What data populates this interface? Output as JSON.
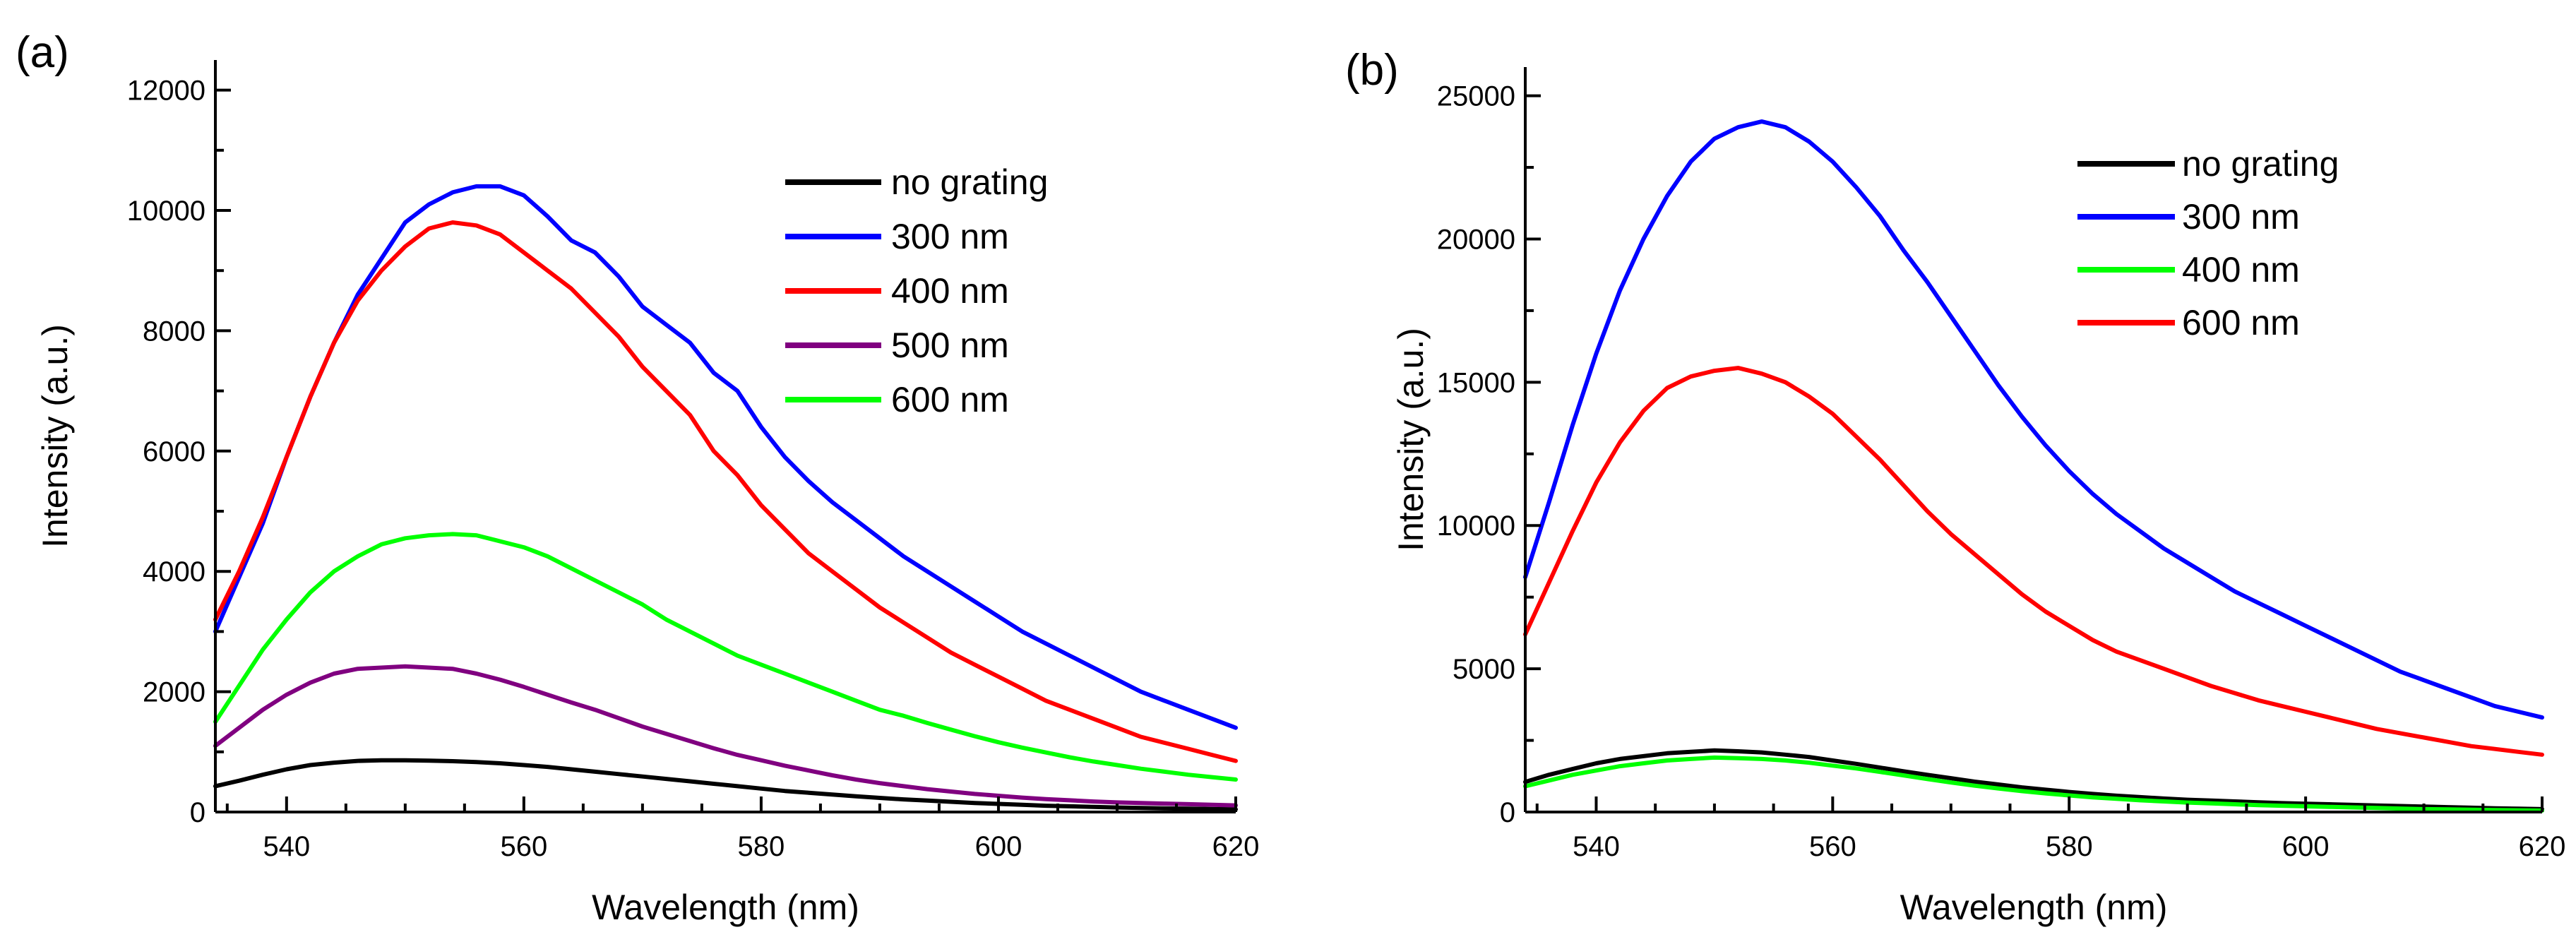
{
  "chart_data": [
    {
      "type": "line",
      "panel_label": "(a)",
      "title": "",
      "xlabel": "Wavelength (nm)",
      "ylabel": "Intensity (a.u.)",
      "xlim": [
        534,
        620
      ],
      "ylim": [
        0,
        12500
      ],
      "xticks": [
        540,
        560,
        580,
        600,
        620
      ],
      "yticks": [
        0,
        2000,
        4000,
        6000,
        8000,
        10000,
        12000
      ],
      "legend_position": "top-right",
      "x": [
        534,
        536,
        538,
        540,
        542,
        544,
        546,
        548,
        550,
        552,
        554,
        556,
        558,
        560,
        562,
        564,
        566,
        568,
        570,
        572,
        574,
        576,
        578,
        580,
        582,
        584,
        586,
        588,
        590,
        592,
        594,
        596,
        598,
        600,
        602,
        604,
        606,
        608,
        610,
        612,
        614,
        616,
        618,
        620
      ],
      "series": [
        {
          "name": "no grating",
          "color": "#000000",
          "values": [
            430,
            520,
            620,
            710,
            780,
            820,
            850,
            860,
            860,
            855,
            845,
            830,
            810,
            780,
            750,
            710,
            670,
            630,
            590,
            550,
            510,
            470,
            430,
            390,
            350,
            320,
            290,
            260,
            235,
            210,
            190,
            170,
            150,
            135,
            120,
            105,
            95,
            85,
            75,
            68,
            60,
            55,
            50,
            45
          ]
        },
        {
          "name": "300 nm",
          "color": "#0000ff",
          "values": [
            3000,
            3900,
            4800,
            5900,
            6900,
            7800,
            8600,
            9200,
            9800,
            10100,
            10300,
            10400,
            10400,
            10250,
            9900,
            9500,
            9300,
            8900,
            8400,
            8100,
            7800,
            7300,
            7000,
            6400,
            5900,
            5500,
            5150,
            4850,
            4550,
            4250,
            4000,
            3750,
            3500,
            3250,
            3000,
            2800,
            2600,
            2400,
            2200,
            2000,
            1850,
            1700,
            1550,
            1400
          ]
        },
        {
          "name": "400 nm",
          "color": "#ff0000",
          "values": [
            3200,
            4000,
            4900,
            5900,
            6900,
            7800,
            8500,
            9000,
            9400,
            9700,
            9800,
            9750,
            9600,
            9300,
            9000,
            8700,
            8300,
            7900,
            7400,
            7000,
            6600,
            6000,
            5600,
            5100,
            4700,
            4300,
            4000,
            3700,
            3400,
            3150,
            2900,
            2650,
            2450,
            2250,
            2050,
            1850,
            1700,
            1550,
            1400,
            1250,
            1150,
            1050,
            950,
            850
          ]
        },
        {
          "name": "500 nm",
          "color": "#800080",
          "values": [
            1100,
            1400,
            1700,
            1950,
            2150,
            2300,
            2380,
            2400,
            2420,
            2400,
            2380,
            2300,
            2200,
            2080,
            1950,
            1820,
            1700,
            1560,
            1420,
            1300,
            1180,
            1060,
            950,
            860,
            770,
            690,
            610,
            540,
            480,
            430,
            380,
            340,
            300,
            270,
            240,
            215,
            195,
            175,
            160,
            150,
            140,
            130,
            120,
            110
          ]
        },
        {
          "name": "600 nm",
          "color": "#00ff00",
          "values": [
            1500,
            2100,
            2700,
            3200,
            3650,
            4000,
            4250,
            4450,
            4550,
            4600,
            4620,
            4600,
            4500,
            4400,
            4250,
            4050,
            3850,
            3650,
            3450,
            3200,
            3000,
            2800,
            2600,
            2450,
            2300,
            2150,
            2000,
            1850,
            1700,
            1600,
            1480,
            1370,
            1260,
            1160,
            1070,
            990,
            910,
            840,
            780,
            720,
            670,
            620,
            580,
            540
          ]
        }
      ]
    },
    {
      "type": "line",
      "panel_label": "(b)",
      "title": "",
      "xlabel": "Wavelength (nm)",
      "ylabel": "Intensity (a.u.)",
      "xlim": [
        534,
        620
      ],
      "ylim": [
        0,
        26000
      ],
      "xticks": [
        540,
        560,
        580,
        600,
        620
      ],
      "yticks": [
        0,
        5000,
        10000,
        15000,
        20000,
        25000
      ],
      "legend_position": "top-right",
      "x": [
        534,
        536,
        538,
        540,
        542,
        544,
        546,
        548,
        550,
        552,
        554,
        556,
        558,
        560,
        562,
        564,
        566,
        568,
        570,
        572,
        574,
        576,
        578,
        580,
        582,
        584,
        586,
        588,
        590,
        592,
        594,
        596,
        598,
        600,
        602,
        604,
        606,
        608,
        610,
        612,
        614,
        616,
        618,
        620
      ],
      "series": [
        {
          "name": "no grating",
          "color": "#000000",
          "values": [
            1050,
            1300,
            1500,
            1700,
            1850,
            1950,
            2050,
            2100,
            2150,
            2120,
            2080,
            2000,
            1920,
            1800,
            1680,
            1550,
            1420,
            1300,
            1180,
            1060,
            960,
            860,
            780,
            700,
            630,
            570,
            520,
            470,
            430,
            400,
            370,
            340,
            310,
            290,
            270,
            250,
            230,
            210,
            190,
            170,
            150,
            130,
            115,
            100
          ]
        },
        {
          "name": "300 nm",
          "color": "#0000ff",
          "values": [
            8200,
            10800,
            13500,
            16000,
            18200,
            20000,
            21500,
            22700,
            23500,
            23900,
            24100,
            23900,
            23400,
            22700,
            21800,
            20800,
            19600,
            18500,
            17300,
            16100,
            14900,
            13800,
            12800,
            11900,
            11100,
            10400,
            9800,
            9200,
            8700,
            8200,
            7700,
            7300,
            6900,
            6500,
            6100,
            5700,
            5300,
            4900,
            4600,
            4300,
            4000,
            3700,
            3500,
            3300
          ]
        },
        {
          "name": "400 nm",
          "color": "#00ff00",
          "values": [
            900,
            1100,
            1300,
            1450,
            1600,
            1700,
            1800,
            1850,
            1900,
            1880,
            1850,
            1800,
            1720,
            1620,
            1520,
            1400,
            1280,
            1150,
            1030,
            920,
            820,
            730,
            650,
            580,
            510,
            460,
            410,
            370,
            330,
            300,
            270,
            240,
            220,
            200,
            180,
            160,
            140,
            120,
            100,
            90,
            80,
            70,
            60,
            50
          ]
        },
        {
          "name": "600 nm",
          "color": "#ff0000",
          "values": [
            6200,
            8000,
            9800,
            11500,
            12900,
            14000,
            14800,
            15200,
            15400,
            15500,
            15300,
            15000,
            14500,
            13900,
            13100,
            12300,
            11400,
            10500,
            9700,
            9000,
            8300,
            7600,
            7000,
            6500,
            6000,
            5600,
            5300,
            5000,
            4700,
            4400,
            4150,
            3900,
            3700,
            3500,
            3300,
            3100,
            2900,
            2750,
            2600,
            2450,
            2300,
            2200,
            2100,
            2000
          ]
        }
      ]
    }
  ]
}
